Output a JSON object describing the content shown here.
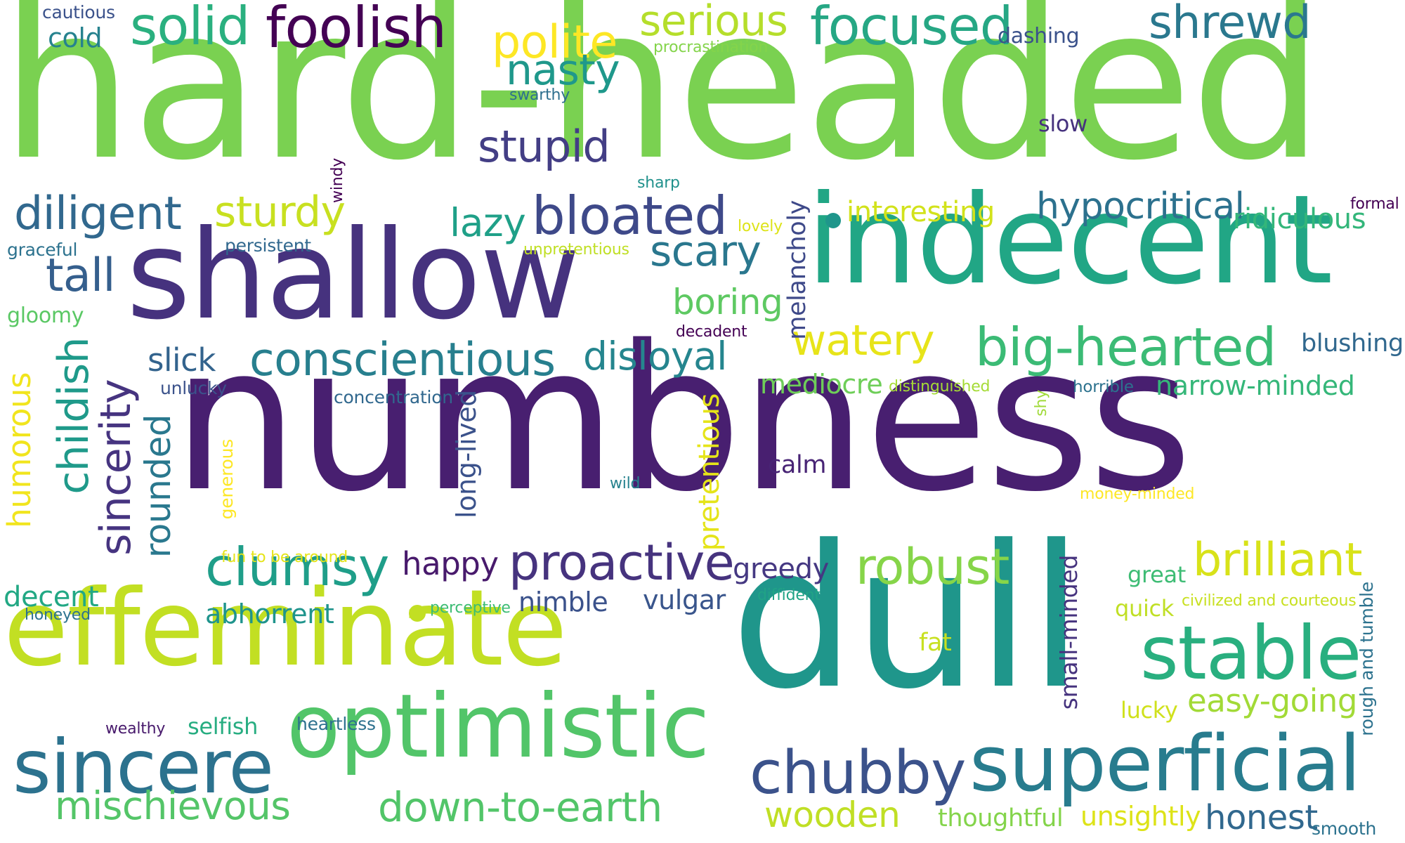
{
  "palette": {
    "lime": "#7ad151",
    "yellow": "#fde725",
    "yellowgreen": "#c2df23",
    "green": "#22a884",
    "teal": "#1f968b",
    "blue": "#2c728e",
    "indigo": "#3b528b",
    "purple": "#472d7b",
    "darkpurple": "#440154"
  },
  "words": [
    {
      "text": "hard-headed",
      "color": "#7ad151",
      "vertical": false
    },
    {
      "text": "numbness",
      "color": "#481f70",
      "vertical": false
    },
    {
      "text": "dull",
      "color": "#1f968b",
      "vertical": false
    },
    {
      "text": "shallow",
      "color": "#46327e",
      "vertical": false
    },
    {
      "text": "indecent",
      "color": "#21a685",
      "vertical": false
    },
    {
      "text": "effeminate",
      "color": "#c2df23",
      "vertical": false
    },
    {
      "text": "optimistic",
      "color": "#52c569",
      "vertical": false
    },
    {
      "text": "superficial",
      "color": "#287c8e",
      "vertical": false
    },
    {
      "text": "sincere",
      "color": "#2c728e",
      "vertical": false
    },
    {
      "text": "stable",
      "color": "#29af7f",
      "vertical": false
    },
    {
      "text": "chubby",
      "color": "#3b528b",
      "vertical": false
    },
    {
      "text": "big-hearted",
      "color": "#3bbb75",
      "vertical": false
    },
    {
      "text": "proactive",
      "color": "#46337e",
      "vertical": false
    },
    {
      "text": "clumsy",
      "color": "#1f9e89",
      "vertical": false
    },
    {
      "text": "conscientious",
      "color": "#277f8e",
      "vertical": false
    },
    {
      "text": "robust",
      "color": "#86d549",
      "vertical": false
    },
    {
      "text": "brilliant",
      "color": "#d8e219",
      "vertical": false
    },
    {
      "text": "bloated",
      "color": "#3e4989",
      "vertical": false
    },
    {
      "text": "foolish",
      "color": "#440154",
      "vertical": false
    },
    {
      "text": "focused",
      "color": "#26a784",
      "vertical": false
    },
    {
      "text": "shrewd",
      "color": "#2a788e",
      "vertical": false
    },
    {
      "text": "solid",
      "color": "#2ab07f",
      "vertical": false
    },
    {
      "text": "serious",
      "color": "#b5de2b",
      "vertical": false
    },
    {
      "text": "polite",
      "color": "#fde725",
      "vertical": false
    },
    {
      "text": "nasty",
      "color": "#1f988b",
      "vertical": false
    },
    {
      "text": "stupid",
      "color": "#433e85",
      "vertical": false
    },
    {
      "text": "diligent",
      "color": "#31688e",
      "vertical": false
    },
    {
      "text": "sturdy",
      "color": "#c8e020",
      "vertical": false
    },
    {
      "text": "lazy",
      "color": "#1fa088",
      "vertical": false
    },
    {
      "text": "scary",
      "color": "#2a778e",
      "vertical": false
    },
    {
      "text": "watery",
      "color": "#e7e419",
      "vertical": false
    },
    {
      "text": "hypocritical",
      "color": "#2c718e",
      "vertical": false
    },
    {
      "text": "ridiculous",
      "color": "#33b67a",
      "vertical": false
    },
    {
      "text": "tall",
      "color": "#355f8d",
      "vertical": false
    },
    {
      "text": "disloyal",
      "color": "#25858e",
      "vertical": false
    },
    {
      "text": "boring",
      "color": "#5ec962",
      "vertical": false
    },
    {
      "text": "interesting",
      "color": "#d2e21b",
      "vertical": false
    },
    {
      "text": "slick",
      "color": "#33638d",
      "vertical": false
    },
    {
      "text": "mediocre",
      "color": "#6ece58",
      "vertical": false
    },
    {
      "text": "narrow-minded",
      "color": "#35b779",
      "vertical": false
    },
    {
      "text": "happy",
      "color": "#481a6c",
      "vertical": false
    },
    {
      "text": "greedy",
      "color": "#453882",
      "vertical": false
    },
    {
      "text": "abhorrent",
      "color": "#1f948c",
      "vertical": false
    },
    {
      "text": "nimble",
      "color": "#3b528b",
      "vertical": false
    },
    {
      "text": "vulgar",
      "color": "#39558c",
      "vertical": false
    },
    {
      "text": "decent",
      "color": "#22a884",
      "vertical": false
    },
    {
      "text": "easy-going",
      "color": "#a2da37",
      "vertical": false
    },
    {
      "text": "mischievous",
      "color": "#54c568",
      "vertical": false
    },
    {
      "text": "down-to-earth",
      "color": "#52c569",
      "vertical": false
    },
    {
      "text": "wooden",
      "color": "#c0df25",
      "vertical": false
    },
    {
      "text": "honest",
      "color": "#31688e",
      "vertical": false
    },
    {
      "text": "thoughtful",
      "color": "#84d44b",
      "vertical": false
    },
    {
      "text": "unsightly",
      "color": "#dde318",
      "vertical": false
    },
    {
      "text": "blushing",
      "color": "#31688e",
      "vertical": false
    },
    {
      "text": "calm",
      "color": "#482475",
      "vertical": false
    },
    {
      "text": "fat",
      "color": "#c8e020",
      "vertical": false
    },
    {
      "text": "great",
      "color": "#3dbc74",
      "vertical": false
    },
    {
      "text": "quick",
      "color": "#c0df25",
      "vertical": false
    },
    {
      "text": "lucky",
      "color": "#d0e11c",
      "vertical": false
    },
    {
      "text": "selfish",
      "color": "#27ad81",
      "vertical": false
    },
    {
      "text": "heartless",
      "color": "#2d718e",
      "vertical": false
    },
    {
      "text": "cold",
      "color": "#26828e",
      "vertical": false
    },
    {
      "text": "slow",
      "color": "#46327e",
      "vertical": false
    },
    {
      "text": "dashing",
      "color": "#3b528b",
      "vertical": false
    },
    {
      "text": "gloomy",
      "color": "#5ac864",
      "vertical": false
    },
    {
      "text": "persistent",
      "color": "#31688e",
      "vertical": false
    },
    {
      "text": "graceful",
      "color": "#2c728e",
      "vertical": false
    },
    {
      "text": "lovely",
      "color": "#dde318",
      "vertical": false
    },
    {
      "text": "unpretentious",
      "color": "#c0df25",
      "vertical": false
    },
    {
      "text": "sharp",
      "color": "#21918c",
      "vertical": false
    },
    {
      "text": "swarthy",
      "color": "#2e6f8e",
      "vertical": false
    },
    {
      "text": "procrastination",
      "color": "#84d44b",
      "vertical": false
    },
    {
      "text": "cautious",
      "color": "#3b528b",
      "vertical": false
    },
    {
      "text": "formal",
      "color": "#440154",
      "vertical": false
    },
    {
      "text": "decadent",
      "color": "#440154",
      "vertical": false
    },
    {
      "text": "unlucky",
      "color": "#3b528b",
      "vertical": false
    },
    {
      "text": "concentration",
      "color": "#31688e",
      "vertical": false
    },
    {
      "text": "distinguished",
      "color": "#a5db36",
      "vertical": false
    },
    {
      "text": "horrible",
      "color": "#2c728e",
      "vertical": false
    },
    {
      "text": "money-minded",
      "color": "#fde725",
      "vertical": false
    },
    {
      "text": "fun to be around",
      "color": "#e5e419",
      "vertical": false
    },
    {
      "text": "perceptive",
      "color": "#3dbc74",
      "vertical": false
    },
    {
      "text": "diffident",
      "color": "#20a386",
      "vertical": false
    },
    {
      "text": "civilized and courteous",
      "color": "#c8e020",
      "vertical": false
    },
    {
      "text": "honeyed",
      "color": "#2c728e",
      "vertical": false
    },
    {
      "text": "wealthy",
      "color": "#481a6c",
      "vertical": false
    },
    {
      "text": "wild",
      "color": "#26828e",
      "vertical": false
    },
    {
      "text": "smooth",
      "color": "#2c728e",
      "vertical": false
    },
    {
      "text": "childish",
      "color": "#1f9a8a",
      "vertical": true
    },
    {
      "text": "sincerity",
      "color": "#463480",
      "vertical": true
    },
    {
      "text": "rounded",
      "color": "#2a788e",
      "vertical": true
    },
    {
      "text": "humorous",
      "color": "#f1e51d",
      "vertical": true
    },
    {
      "text": "long-lived",
      "color": "#3b528b",
      "vertical": true
    },
    {
      "text": "pretentious",
      "color": "#e5e419",
      "vertical": true
    },
    {
      "text": "generous",
      "color": "#fde725",
      "vertical": true
    },
    {
      "text": "melancholy",
      "color": "#3e4989",
      "vertical": true
    },
    {
      "text": "small-minded",
      "color": "#46337e",
      "vertical": true
    },
    {
      "text": "rough and tumble",
      "color": "#2c728e",
      "vertical": true
    },
    {
      "text": "windy",
      "color": "#440154",
      "vertical": true
    },
    {
      "text": "shy",
      "color": "#a0da39",
      "vertical": true
    }
  ]
}
